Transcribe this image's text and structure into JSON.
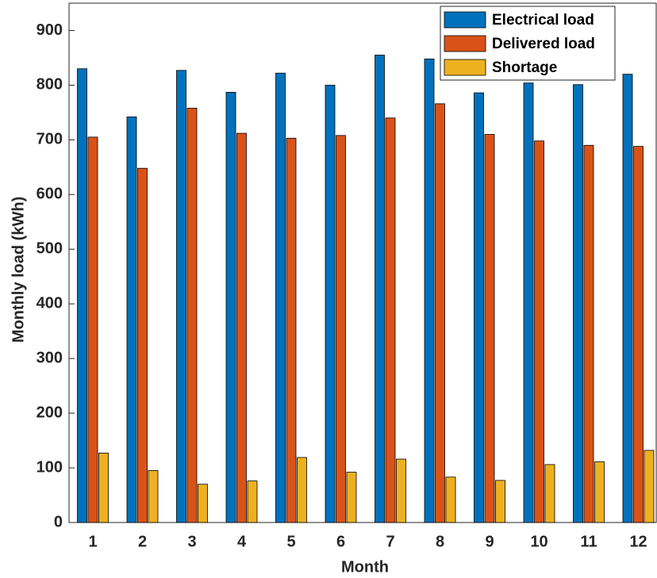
{
  "chart_data": {
    "type": "bar",
    "x_label": "Month",
    "y_label": "Monthly load (kWh)",
    "categories": [
      "1",
      "2",
      "3",
      "4",
      "5",
      "6",
      "7",
      "8",
      "9",
      "10",
      "11",
      "12"
    ],
    "series": [
      {
        "name": "Electrical load",
        "color": "#0072BD",
        "values": [
          830,
          742,
          827,
          787,
          822,
          800,
          855,
          848,
          786,
          804,
          801,
          820
        ]
      },
      {
        "name": "Delivered load",
        "color": "#D95319",
        "values": [
          705,
          648,
          758,
          712,
          703,
          708,
          740,
          766,
          710,
          698,
          690,
          688
        ]
      },
      {
        "name": "Shortage",
        "color": "#EDB120",
        "values": [
          127,
          95,
          70,
          76,
          119,
          92,
          116,
          83,
          77,
          106,
          111,
          132
        ]
      }
    ],
    "ylim": [
      0,
      950
    ],
    "yticks": [
      0,
      100,
      200,
      300,
      400,
      500,
      600,
      700,
      800,
      900
    ],
    "grid": false,
    "legend": "upper right"
  }
}
